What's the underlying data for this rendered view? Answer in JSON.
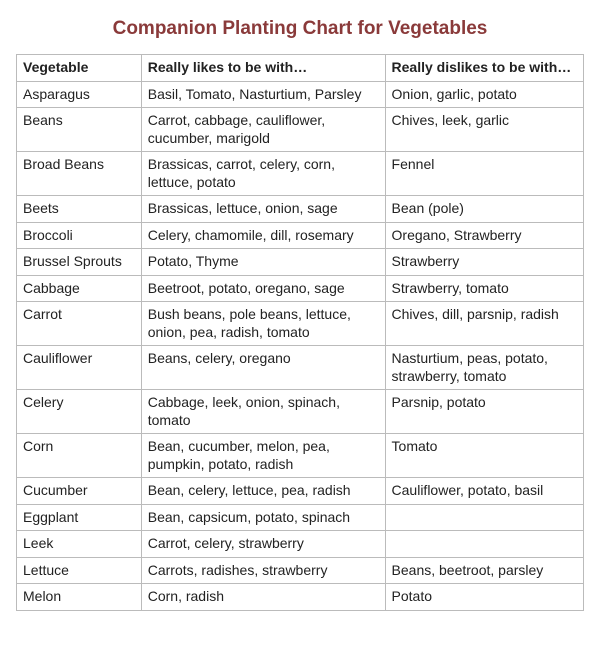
{
  "title": "Companion Planting Chart for Vegetables",
  "columns": [
    "Vegetable",
    "Really likes to be with…",
    "Really dislikes to be with…"
  ],
  "rows": [
    [
      "Asparagus",
      "Basil, Tomato, Nasturtium, Parsley",
      "Onion, garlic, potato"
    ],
    [
      "Beans",
      "Carrot, cabbage, cauliflower, cucumber, marigold",
      "Chives, leek, garlic"
    ],
    [
      "Broad Beans",
      "Brassicas, carrot, celery, corn, lettuce, potato",
      "Fennel"
    ],
    [
      "Beets",
      "Brassicas, lettuce, onion, sage",
      "Bean (pole)"
    ],
    [
      "Broccoli",
      "Celery, chamomile, dill, rosemary",
      "Oregano, Strawberry"
    ],
    [
      "Brussel Sprouts",
      "Potato, Thyme",
      "Strawberry"
    ],
    [
      "Cabbage",
      "Beetroot, potato, oregano, sage",
      "Strawberry, tomato"
    ],
    [
      "Carrot",
      "Bush beans, pole beans, lettuce, onion, pea, radish, tomato",
      "Chives, dill, parsnip, radish"
    ],
    [
      "Cauliflower",
      "Beans, celery, oregano",
      "Nasturtium, peas, potato, strawberry, tomato"
    ],
    [
      "Celery",
      "Cabbage, leek, onion, spinach, tomato",
      "Parsnip, potato"
    ],
    [
      "Corn",
      "Bean, cucumber, melon, pea, pumpkin, potato, radish",
      "Tomato"
    ],
    [
      "Cucumber",
      "Bean, celery, lettuce, pea, radish",
      "Cauliflower, potato, basil"
    ],
    [
      "Eggplant",
      "Bean, capsicum, potato, spinach",
      ""
    ],
    [
      "Leek",
      "Carrot, celery, strawberry",
      ""
    ],
    [
      "Lettuce",
      "Carrots, radishes, strawberry",
      "Beans, beetroot, parsley"
    ],
    [
      "Melon",
      "Corn, radish",
      "Potato"
    ]
  ]
}
